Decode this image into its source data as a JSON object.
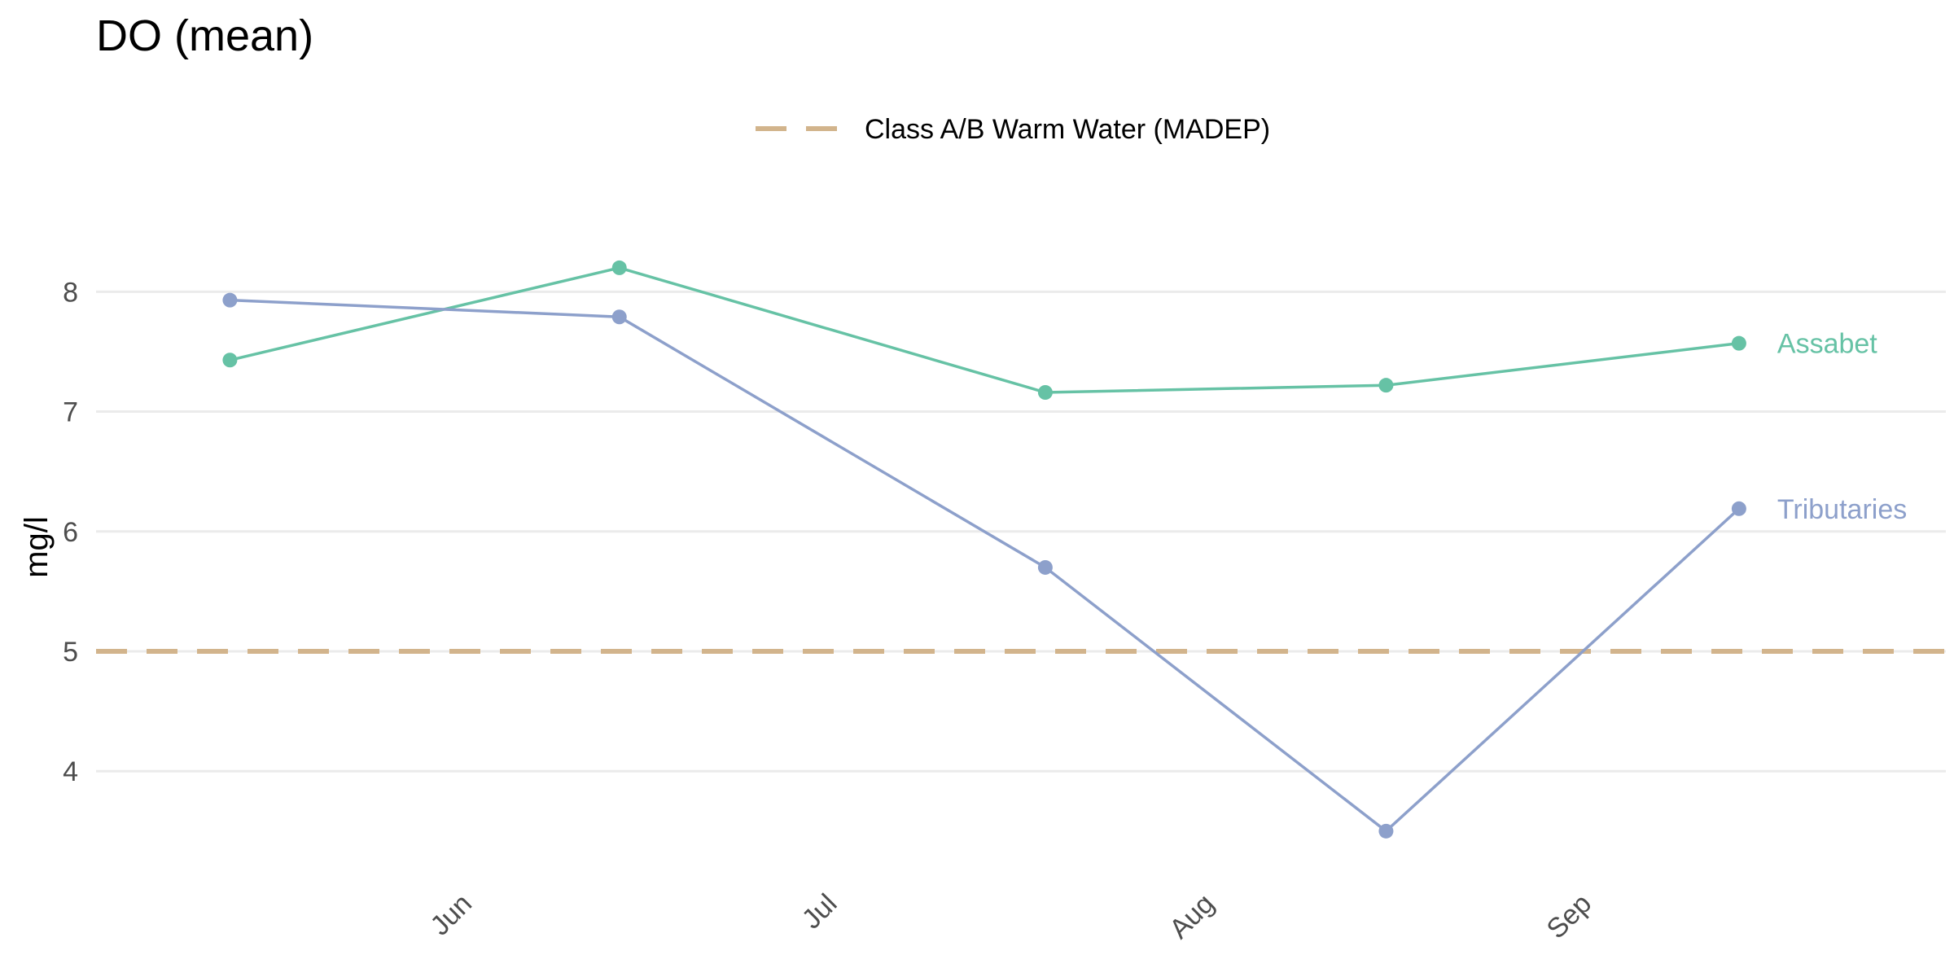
{
  "chart_data": {
    "type": "line",
    "title": "DO (mean)",
    "xlabel": "",
    "ylabel": "mg/l",
    "x_tick_labels": [
      "Jun",
      "Jul",
      "Aug",
      "Sep"
    ],
    "x": [
      "2023-05-12",
      "2023-06-13",
      "2023-07-18",
      "2023-08-15",
      "2023-09-13"
    ],
    "y_ticks": [
      4,
      5,
      6,
      7,
      8
    ],
    "ylim": [
      3.2,
      8.6
    ],
    "grid": true,
    "series": [
      {
        "name": "Assabet",
        "color": "#66c2a5",
        "values": [
          7.43,
          8.2,
          7.16,
          7.22,
          7.57
        ]
      },
      {
        "name": "Tributaries",
        "color": "#8da0cb",
        "values": [
          7.93,
          7.79,
          5.7,
          3.5,
          6.19
        ]
      }
    ],
    "reference_line": {
      "label": "Class A/B Warm Water (MADEP)",
      "value": 5,
      "color": "#d2b48c",
      "style": "dashed"
    },
    "legend_position": "top"
  }
}
